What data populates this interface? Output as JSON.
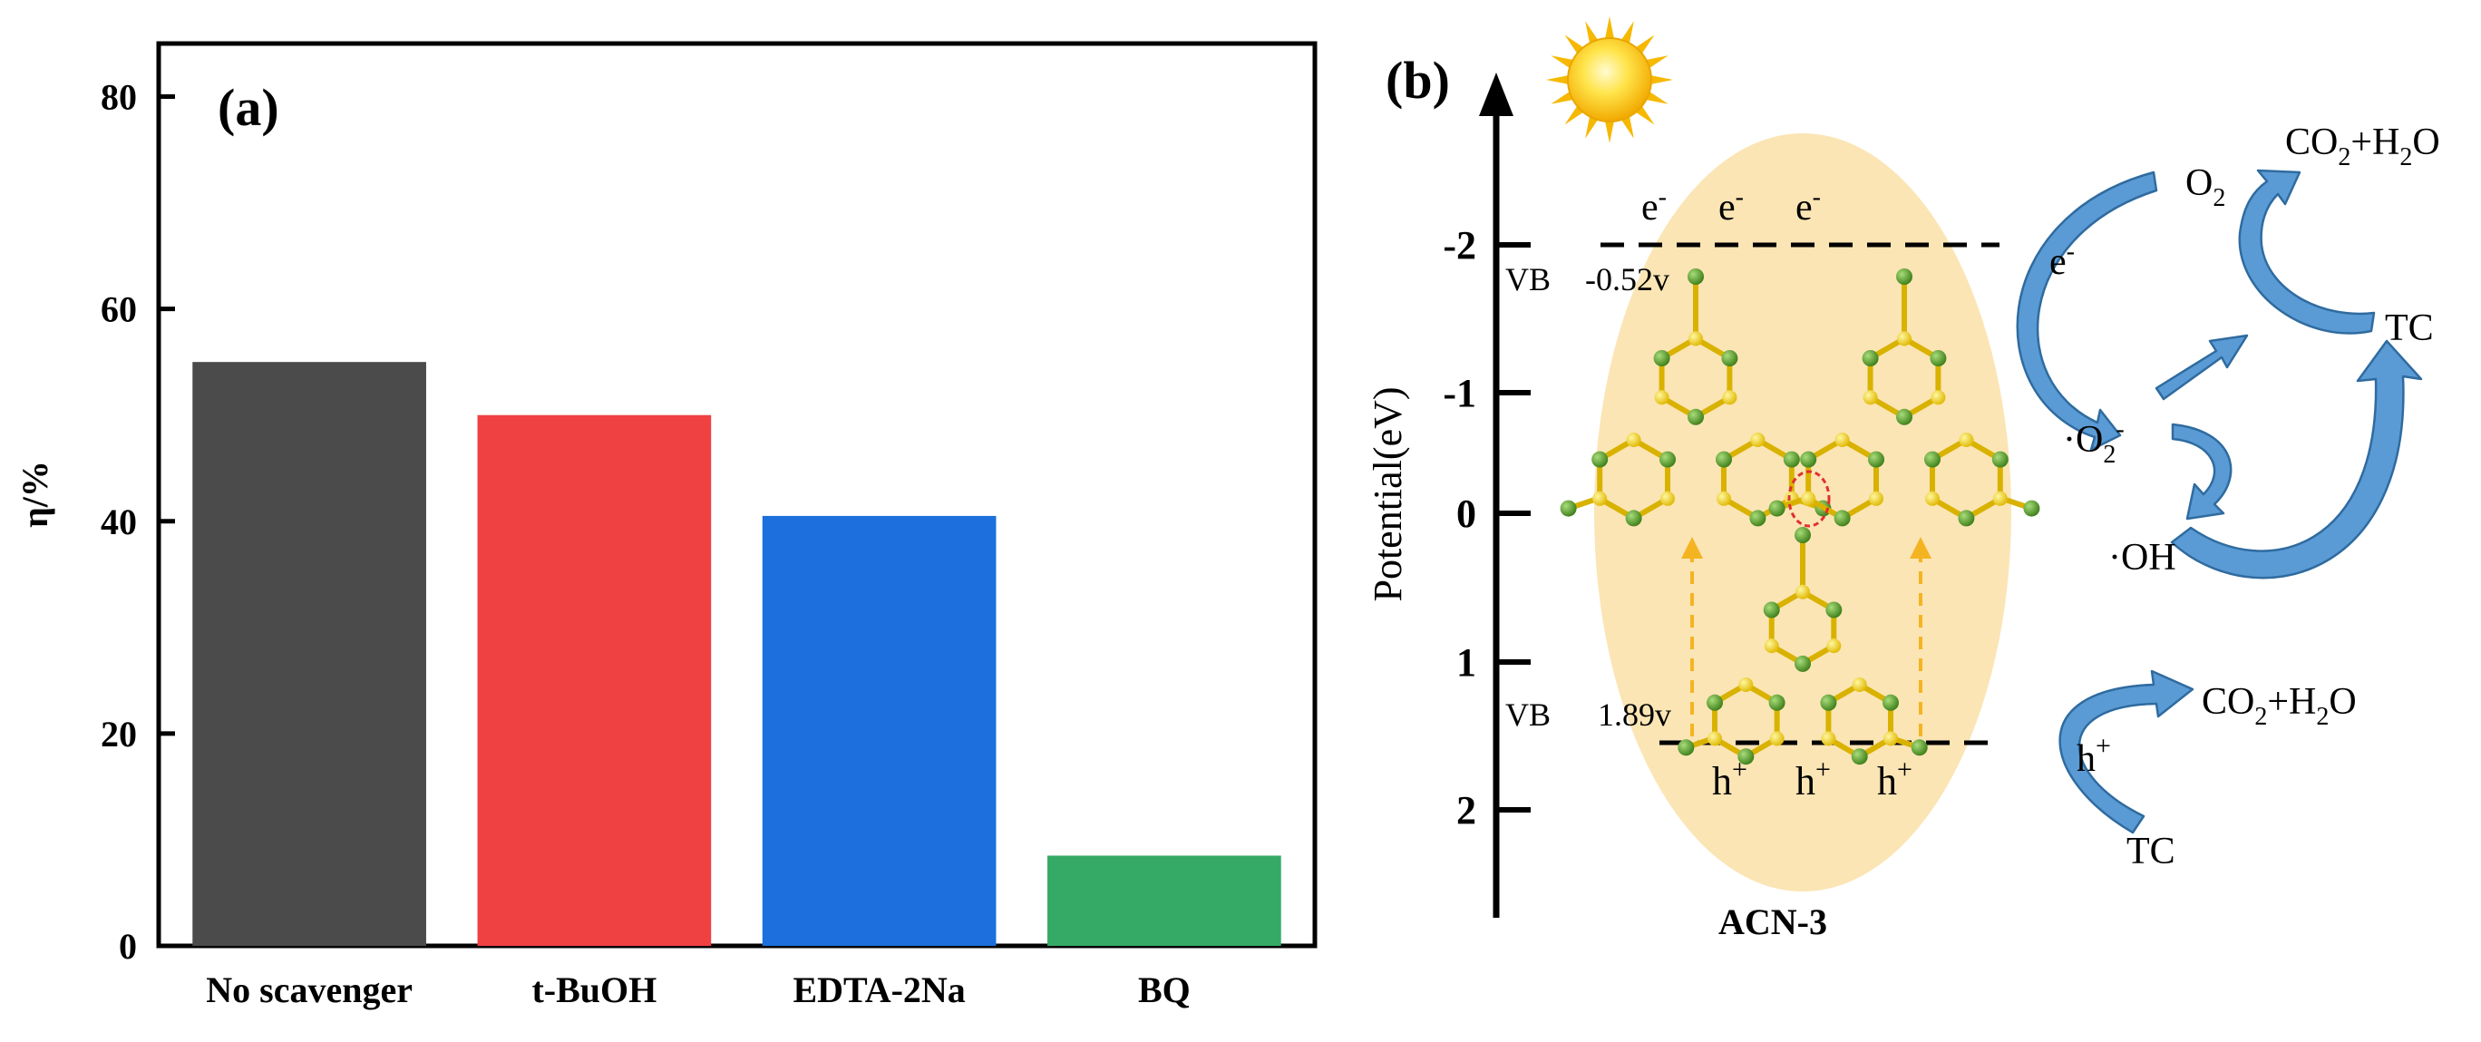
{
  "panels": {
    "a_label": "(a)",
    "b_label": "(b)"
  },
  "chart_data": {
    "type": "bar",
    "categories": [
      "No scavenger",
      "t-BuOH",
      "EDTA-2Na",
      "BQ"
    ],
    "values": [
      55,
      50,
      40.5,
      8.5
    ],
    "colors": [
      "#4b4b4b",
      "#ef4142",
      "#1c6fdc",
      "#35aa66"
    ],
    "title": "",
    "xlabel": "",
    "ylabel": "η/%",
    "ylim": [
      0,
      85
    ],
    "yticks": [
      0,
      20,
      40,
      60,
      80
    ],
    "grid": false
  },
  "diagram": {
    "axis_label": "Potential(eV)",
    "ticks": [
      "-2",
      "-1",
      "0",
      "1",
      "2"
    ],
    "material": "ACN-3",
    "cb": {
      "label": "VB",
      "value": "-0.52v",
      "carrier": "e",
      "carrier_sup": "-"
    },
    "vb": {
      "label": "VB",
      "value": "1.89v",
      "carrier": "h",
      "carrier_sup": "+"
    },
    "species": {
      "o2": {
        "base": "O",
        "sub": "2"
      },
      "superoxide": {
        "pre": "·O",
        "sub": "2",
        "sup": "-"
      },
      "hydroxyl": "·OH",
      "tc": "TC",
      "products": {
        "a": "CO",
        "sub1": "2",
        "b": "+H",
        "sub2": "2",
        "c": "O"
      },
      "electron": {
        "base": "e",
        "sup": "-"
      },
      "hole": {
        "base": "h",
        "sup": "+"
      }
    },
    "colors": {
      "ellipse": "#fbe5b4",
      "arrow": "#5b9bd5",
      "atom_c": "#f5d20b",
      "atom_n": "#4e9a22",
      "dash": "#f4b422"
    }
  }
}
